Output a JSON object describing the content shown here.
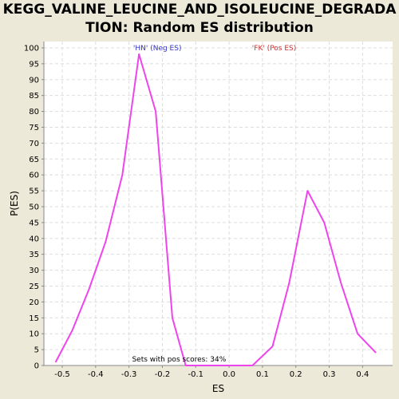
{
  "chart_data": {
    "type": "line",
    "title_line1": "KEGG_VALINE_LEUCINE_AND_ISOLEUCINE_DEGRADA",
    "title_line2": "TION: Random ES distribution",
    "xlabel": "ES",
    "ylabel": "P(ES)",
    "xlim": [
      -0.555,
      0.49
    ],
    "ylim": [
      0,
      102
    ],
    "xticks": [
      -0.5,
      -0.4,
      -0.3,
      -0.2,
      -0.1,
      0.0,
      0.1,
      0.2,
      0.3,
      0.4
    ],
    "xtick_labels": [
      "-0.5",
      "-0.4",
      "-0.3",
      "-0.2",
      "-0.1",
      "0.0",
      "0.1",
      "0.2",
      "0.3",
      "0.4"
    ],
    "yticks": [
      0,
      5,
      10,
      15,
      20,
      25,
      30,
      35,
      40,
      45,
      50,
      55,
      60,
      65,
      70,
      75,
      80,
      85,
      90,
      95,
      100
    ],
    "grid": true,
    "series": [
      {
        "color": "#ee44ee",
        "x": [
          -0.52,
          -0.47,
          -0.42,
          -0.37,
          -0.32,
          -0.27,
          -0.22,
          -0.17,
          -0.13,
          -0.08,
          -0.03,
          0.02,
          0.07,
          0.13,
          0.18,
          0.235,
          0.285,
          0.335,
          0.385,
          0.44
        ],
        "y": [
          1,
          11,
          24,
          39,
          60,
          98,
          80,
          15,
          0,
          0,
          0,
          0,
          0,
          6,
          26,
          55,
          45,
          26,
          10,
          4
        ]
      }
    ],
    "annotations": [
      {
        "text": "'HN' (Neg ES)",
        "x": -0.215,
        "y": 100,
        "color": "#3333cc"
      },
      {
        "text": "'FK' (Pos ES)",
        "x": 0.135,
        "y": 100,
        "color": "#cc3333"
      },
      {
        "text": "Sets with pos scores: 34%",
        "x": -0.15,
        "y": 2,
        "color": "#000000"
      }
    ]
  }
}
